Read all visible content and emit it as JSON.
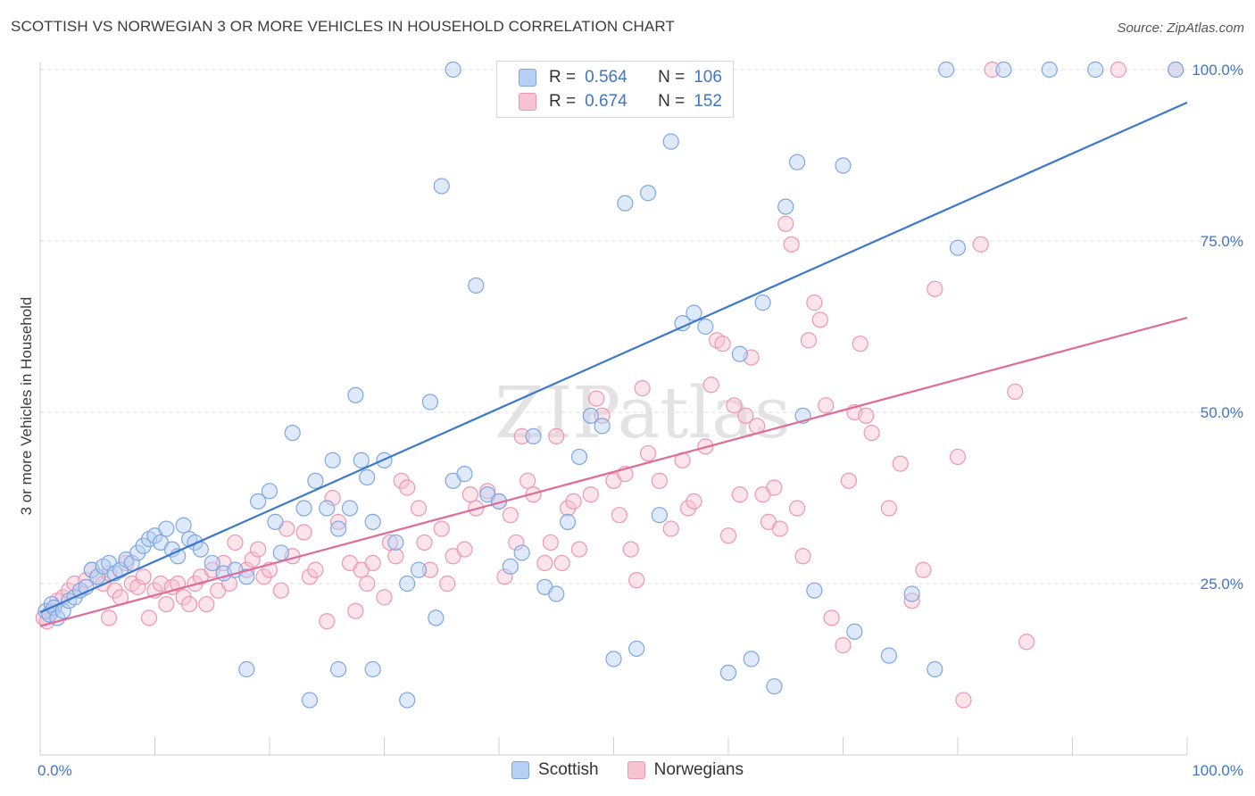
{
  "title": "SCOTTISH VS NORWEGIAN 3 OR MORE VEHICLES IN HOUSEHOLD CORRELATION CHART",
  "source": "Source: ZipAtlas.com",
  "watermark": "ZIPatlas",
  "legend": {
    "r_label": "R =",
    "n_label": "N =",
    "scottish": {
      "r": "0.564",
      "n": "106"
    },
    "norwegians": {
      "r": "0.674",
      "n": "152"
    }
  },
  "legend_bottom": {
    "scottish": "Scottish",
    "norwegians": "Norwegians"
  },
  "chart_data": {
    "type": "scatter",
    "title": "SCOTTISH VS NORWEGIAN 3 OR MORE VEHICLES IN HOUSEHOLD CORRELATION CHART",
    "xlabel": "",
    "ylabel": "3 or more Vehicles in Household",
    "xlim": [
      0,
      100
    ],
    "ylim": [
      0,
      105
    ],
    "x_tick_labels": [
      "0.0%",
      "100.0%"
    ],
    "y_tick_labels": [
      "25.0%",
      "50.0%",
      "75.0%",
      "100.0%"
    ],
    "y_ticks": [
      25,
      50,
      75,
      100
    ],
    "grid": true,
    "colors": {
      "scottish": "#7ea6e0",
      "scottish_line": "#3c78d0",
      "norwegians": "#ec97b1",
      "norwegians_line": "#e06b95"
    },
    "series": [
      {
        "name": "Scottish",
        "trend": {
          "x": [
            0,
            100
          ],
          "y": [
            20.8,
            95.2
          ]
        },
        "points": [
          [
            0.5,
            21
          ],
          [
            0.8,
            20.5
          ],
          [
            1,
            22
          ],
          [
            1.2,
            21.5
          ],
          [
            1.5,
            20
          ],
          [
            2,
            21
          ],
          [
            2.5,
            22.5
          ],
          [
            3,
            23
          ],
          [
            3.5,
            24
          ],
          [
            4,
            24.5
          ],
          [
            4.5,
            27
          ],
          [
            5,
            26
          ],
          [
            5.5,
            27.5
          ],
          [
            6,
            28
          ],
          [
            6.5,
            26.5
          ],
          [
            7,
            27
          ],
          [
            7.5,
            28.5
          ],
          [
            8,
            28
          ],
          [
            8.5,
            29.5
          ],
          [
            9,
            30.5
          ],
          [
            9.5,
            31.5
          ],
          [
            10,
            32
          ],
          [
            10.5,
            31
          ],
          [
            11,
            33
          ],
          [
            11.5,
            30
          ],
          [
            12,
            29
          ],
          [
            12.5,
            33.5
          ],
          [
            13,
            31.5
          ],
          [
            13.5,
            31
          ],
          [
            14,
            30
          ],
          [
            15,
            28
          ],
          [
            16,
            26.5
          ],
          [
            17,
            27
          ],
          [
            18,
            26
          ],
          [
            19,
            37
          ],
          [
            20,
            38.5
          ],
          [
            20.5,
            34
          ],
          [
            21,
            29.5
          ],
          [
            22,
            47
          ],
          [
            23,
            36
          ],
          [
            24,
            40
          ],
          [
            25,
            36
          ],
          [
            25.5,
            43
          ],
          [
            26,
            33
          ],
          [
            27,
            36
          ],
          [
            27.5,
            52.5
          ],
          [
            28,
            43
          ],
          [
            28.5,
            40.5
          ],
          [
            29,
            34
          ],
          [
            30,
            43
          ],
          [
            31,
            31
          ],
          [
            32,
            25
          ],
          [
            33,
            27
          ],
          [
            34,
            51.5
          ],
          [
            34.5,
            20
          ],
          [
            35,
            83
          ],
          [
            36,
            40
          ],
          [
            37,
            41
          ],
          [
            38,
            68.5
          ],
          [
            39,
            38
          ],
          [
            40,
            37
          ],
          [
            41,
            27.5
          ],
          [
            42,
            29.5
          ],
          [
            43,
            46.5
          ],
          [
            44,
            24.5
          ],
          [
            45,
            23.5
          ],
          [
            46,
            34
          ],
          [
            47,
            43.5
          ],
          [
            48,
            49.5
          ],
          [
            49,
            48
          ],
          [
            50,
            14
          ],
          [
            51,
            80.5
          ],
          [
            52,
            15.5
          ],
          [
            53,
            82
          ],
          [
            54,
            35
          ],
          [
            55,
            89.5
          ],
          [
            56,
            63
          ],
          [
            57,
            64.5
          ],
          [
            58,
            62.5
          ],
          [
            60,
            12
          ],
          [
            61,
            58.5
          ],
          [
            62,
            14
          ],
          [
            63,
            66
          ],
          [
            64,
            10
          ],
          [
            65,
            80
          ],
          [
            66,
            86.5
          ],
          [
            66.5,
            49.5
          ],
          [
            67.5,
            24
          ],
          [
            70,
            86
          ],
          [
            71,
            18
          ],
          [
            74,
            14.5
          ],
          [
            76,
            23.5
          ],
          [
            78,
            12.5
          ],
          [
            80,
            74
          ],
          [
            23.5,
            8
          ],
          [
            26,
            12.5
          ],
          [
            29,
            12.5
          ],
          [
            32,
            8
          ],
          [
            18,
            12.5
          ],
          [
            88,
            100
          ],
          [
            92,
            100
          ],
          [
            99,
            100
          ],
          [
            36,
            100
          ],
          [
            50,
            100
          ],
          [
            58,
            100
          ],
          [
            79,
            100
          ],
          [
            84,
            100
          ]
        ]
      },
      {
        "name": "Norwegians",
        "trend": {
          "x": [
            0,
            100
          ],
          "y": [
            18.8,
            63.8
          ]
        },
        "points": [
          [
            0.3,
            20
          ],
          [
            0.6,
            19.5
          ],
          [
            1,
            21
          ],
          [
            1.5,
            22.5
          ],
          [
            2,
            23
          ],
          [
            2.5,
            24
          ],
          [
            3,
            25
          ],
          [
            3.5,
            24
          ],
          [
            4,
            25.5
          ],
          [
            4.5,
            27
          ],
          [
            5,
            26
          ],
          [
            5.5,
            25
          ],
          [
            6,
            26.5
          ],
          [
            6.5,
            24
          ],
          [
            7,
            23
          ],
          [
            7.5,
            28
          ],
          [
            8,
            25
          ],
          [
            8.5,
            24.5
          ],
          [
            9,
            26
          ],
          [
            9.5,
            20
          ],
          [
            10,
            24
          ],
          [
            10.5,
            25
          ],
          [
            11,
            22
          ],
          [
            11.5,
            24.5
          ],
          [
            12,
            25
          ],
          [
            12.5,
            23
          ],
          [
            13,
            22
          ],
          [
            13.5,
            25
          ],
          [
            14,
            26
          ],
          [
            14.5,
            22
          ],
          [
            15,
            27
          ],
          [
            15.5,
            24
          ],
          [
            16,
            28
          ],
          [
            16.5,
            25
          ],
          [
            17,
            31
          ],
          [
            18,
            27
          ],
          [
            18.5,
            28.5
          ],
          [
            19,
            30
          ],
          [
            19.5,
            26
          ],
          [
            20,
            27
          ],
          [
            21,
            24
          ],
          [
            21.5,
            33
          ],
          [
            22,
            29
          ],
          [
            23,
            32.5
          ],
          [
            23.5,
            26
          ],
          [
            24,
            27
          ],
          [
            25,
            19.5
          ],
          [
            25.5,
            37.5
          ],
          [
            26,
            34
          ],
          [
            27,
            28
          ],
          [
            27.5,
            21
          ],
          [
            28,
            27
          ],
          [
            28.5,
            25
          ],
          [
            29,
            28
          ],
          [
            30,
            23
          ],
          [
            30.5,
            31
          ],
          [
            31,
            29
          ],
          [
            31.5,
            40
          ],
          [
            32,
            39
          ],
          [
            33,
            36
          ],
          [
            33.5,
            31
          ],
          [
            34,
            27
          ],
          [
            35,
            33
          ],
          [
            35.5,
            25
          ],
          [
            36,
            29
          ],
          [
            37,
            30
          ],
          [
            37.5,
            38
          ],
          [
            38,
            36
          ],
          [
            39,
            38.5
          ],
          [
            40,
            37
          ],
          [
            40.5,
            26
          ],
          [
            41,
            35
          ],
          [
            41.5,
            31
          ],
          [
            42,
            46.5
          ],
          [
            42.5,
            40
          ],
          [
            43,
            38
          ],
          [
            44,
            28
          ],
          [
            44.5,
            31
          ],
          [
            45,
            46.5
          ],
          [
            45.5,
            28
          ],
          [
            46,
            36
          ],
          [
            46.5,
            37
          ],
          [
            47,
            30
          ],
          [
            48,
            38
          ],
          [
            48.5,
            52
          ],
          [
            49,
            49.5
          ],
          [
            50,
            40
          ],
          [
            50.5,
            35
          ],
          [
            51,
            41
          ],
          [
            51.5,
            30
          ],
          [
            52,
            25.5
          ],
          [
            52.5,
            53.5
          ],
          [
            53,
            44
          ],
          [
            54,
            40
          ],
          [
            55,
            33
          ],
          [
            56,
            43
          ],
          [
            56.5,
            36
          ],
          [
            57,
            37
          ],
          [
            58,
            45
          ],
          [
            58.5,
            54
          ],
          [
            59,
            60.5
          ],
          [
            59.5,
            60
          ],
          [
            60,
            32
          ],
          [
            60.5,
            51
          ],
          [
            61,
            38
          ],
          [
            61.5,
            49.5
          ],
          [
            62,
            58
          ],
          [
            62.5,
            48
          ],
          [
            63,
            38
          ],
          [
            63.5,
            34
          ],
          [
            64,
            39
          ],
          [
            64.5,
            33
          ],
          [
            65,
            77.5
          ],
          [
            65.5,
            74.5
          ],
          [
            66,
            36
          ],
          [
            66.5,
            29
          ],
          [
            67,
            60.5
          ],
          [
            67.5,
            66
          ],
          [
            68,
            63.5
          ],
          [
            68.5,
            51
          ],
          [
            69,
            20
          ],
          [
            70,
            16
          ],
          [
            70.5,
            40
          ],
          [
            71,
            50
          ],
          [
            71.5,
            60
          ],
          [
            72,
            49.5
          ],
          [
            72.5,
            47
          ],
          [
            74,
            36
          ],
          [
            75,
            42.5
          ],
          [
            76,
            22.5
          ],
          [
            77,
            27
          ],
          [
            78,
            68
          ],
          [
            80,
            43.5
          ],
          [
            80.5,
            8
          ],
          [
            82,
            74.5
          ],
          [
            85,
            53
          ],
          [
            86,
            16.5
          ],
          [
            94,
            100
          ],
          [
            99,
            100
          ],
          [
            83,
            100
          ],
          [
            6,
            20
          ]
        ]
      }
    ]
  }
}
